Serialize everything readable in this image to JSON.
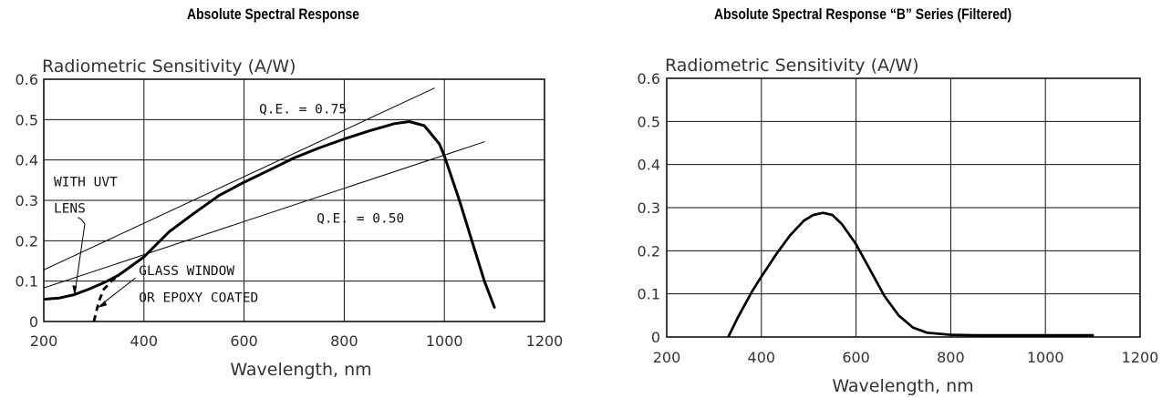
{
  "chart_data": [
    {
      "type": "line",
      "title": "Absolute Spectral Response",
      "ylabel": "Radiometric Sensitivity (A/W)",
      "xlabel": "Wavelength, nm",
      "xlim": [
        200,
        1200
      ],
      "ylim": [
        0,
        0.6
      ],
      "xticks": [
        200,
        400,
        600,
        800,
        1000,
        1200
      ],
      "yticks": [
        0,
        0.1,
        0.2,
        0.3,
        0.4,
        0.5,
        0.6
      ],
      "ytick_labels": [
        "0",
        "0.1",
        "0.2",
        "0.3",
        "0.4",
        "0.5",
        "0.6"
      ],
      "grid": true,
      "series": [
        {
          "name": "WITH UVT LENS",
          "style": "solid",
          "x": [
            200,
            230,
            260,
            290,
            320,
            350,
            400,
            450,
            500,
            550,
            600,
            650,
            700,
            750,
            800,
            850,
            900,
            930,
            960,
            990,
            1000,
            1030,
            1060,
            1080,
            1100
          ],
          "y": [
            0.055,
            0.058,
            0.066,
            0.08,
            0.096,
            0.115,
            0.16,
            0.222,
            0.268,
            0.312,
            0.345,
            0.375,
            0.405,
            0.43,
            0.452,
            0.472,
            0.49,
            0.495,
            0.485,
            0.44,
            0.41,
            0.3,
            0.18,
            0.1,
            0.035
          ]
        },
        {
          "name": "GLASS WINDOW OR EPOXY COATED",
          "style": "dashed",
          "x": [
            300,
            310,
            320,
            335,
            350
          ],
          "y": [
            0.0,
            0.05,
            0.08,
            0.1,
            0.115
          ]
        },
        {
          "name": "Q.E. = 0.75",
          "style": "thin",
          "x": [
            200,
            980
          ],
          "y": [
            0.128,
            0.578
          ]
        },
        {
          "name": "Q.E. = 0.50",
          "style": "thin",
          "x": [
            200,
            1080
          ],
          "y": [
            0.083,
            0.445
          ]
        }
      ],
      "annotations": [
        {
          "text": "Q.E. = 0.75",
          "x": 630,
          "y": 0.515
        },
        {
          "text": "Q.E. = 0.50",
          "x": 745,
          "y": 0.245
        },
        {
          "text": "WITH UVT",
          "x": 220,
          "y": 0.335
        },
        {
          "text": "LENS",
          "x": 220,
          "y": 0.27
        },
        {
          "text": "GLASS WINDOW",
          "x": 390,
          "y": 0.115
        },
        {
          "text": "OR EPOXY COATED",
          "x": 390,
          "y": 0.048
        }
      ]
    },
    {
      "type": "line",
      "title": "Absolute Spectral Response “B” Series (Filtered)",
      "ylabel": "Radiometric Sensitivity (A/W)",
      "xlabel": "Wavelength, nm",
      "xlim": [
        200,
        1200
      ],
      "ylim": [
        0,
        0.6
      ],
      "xticks": [
        200,
        400,
        600,
        800,
        1000,
        1200
      ],
      "yticks": [
        0,
        0.1,
        0.2,
        0.3,
        0.4,
        0.5,
        0.6
      ],
      "ytick_labels": [
        "0",
        "0.1",
        "0.2",
        "0.3",
        "0.4",
        "0.5",
        "0.6"
      ],
      "grid": true,
      "series": [
        {
          "x": [
            330,
            350,
            380,
            400,
            430,
            460,
            490,
            510,
            530,
            550,
            570,
            600,
            630,
            660,
            690,
            720,
            750,
            800,
            850,
            900,
            1000,
            1100
          ],
          "y": [
            0.0,
            0.045,
            0.105,
            0.14,
            0.19,
            0.235,
            0.27,
            0.283,
            0.288,
            0.283,
            0.262,
            0.215,
            0.155,
            0.095,
            0.05,
            0.022,
            0.01,
            0.005,
            0.004,
            0.004,
            0.004,
            0.004
          ]
        }
      ]
    }
  ]
}
